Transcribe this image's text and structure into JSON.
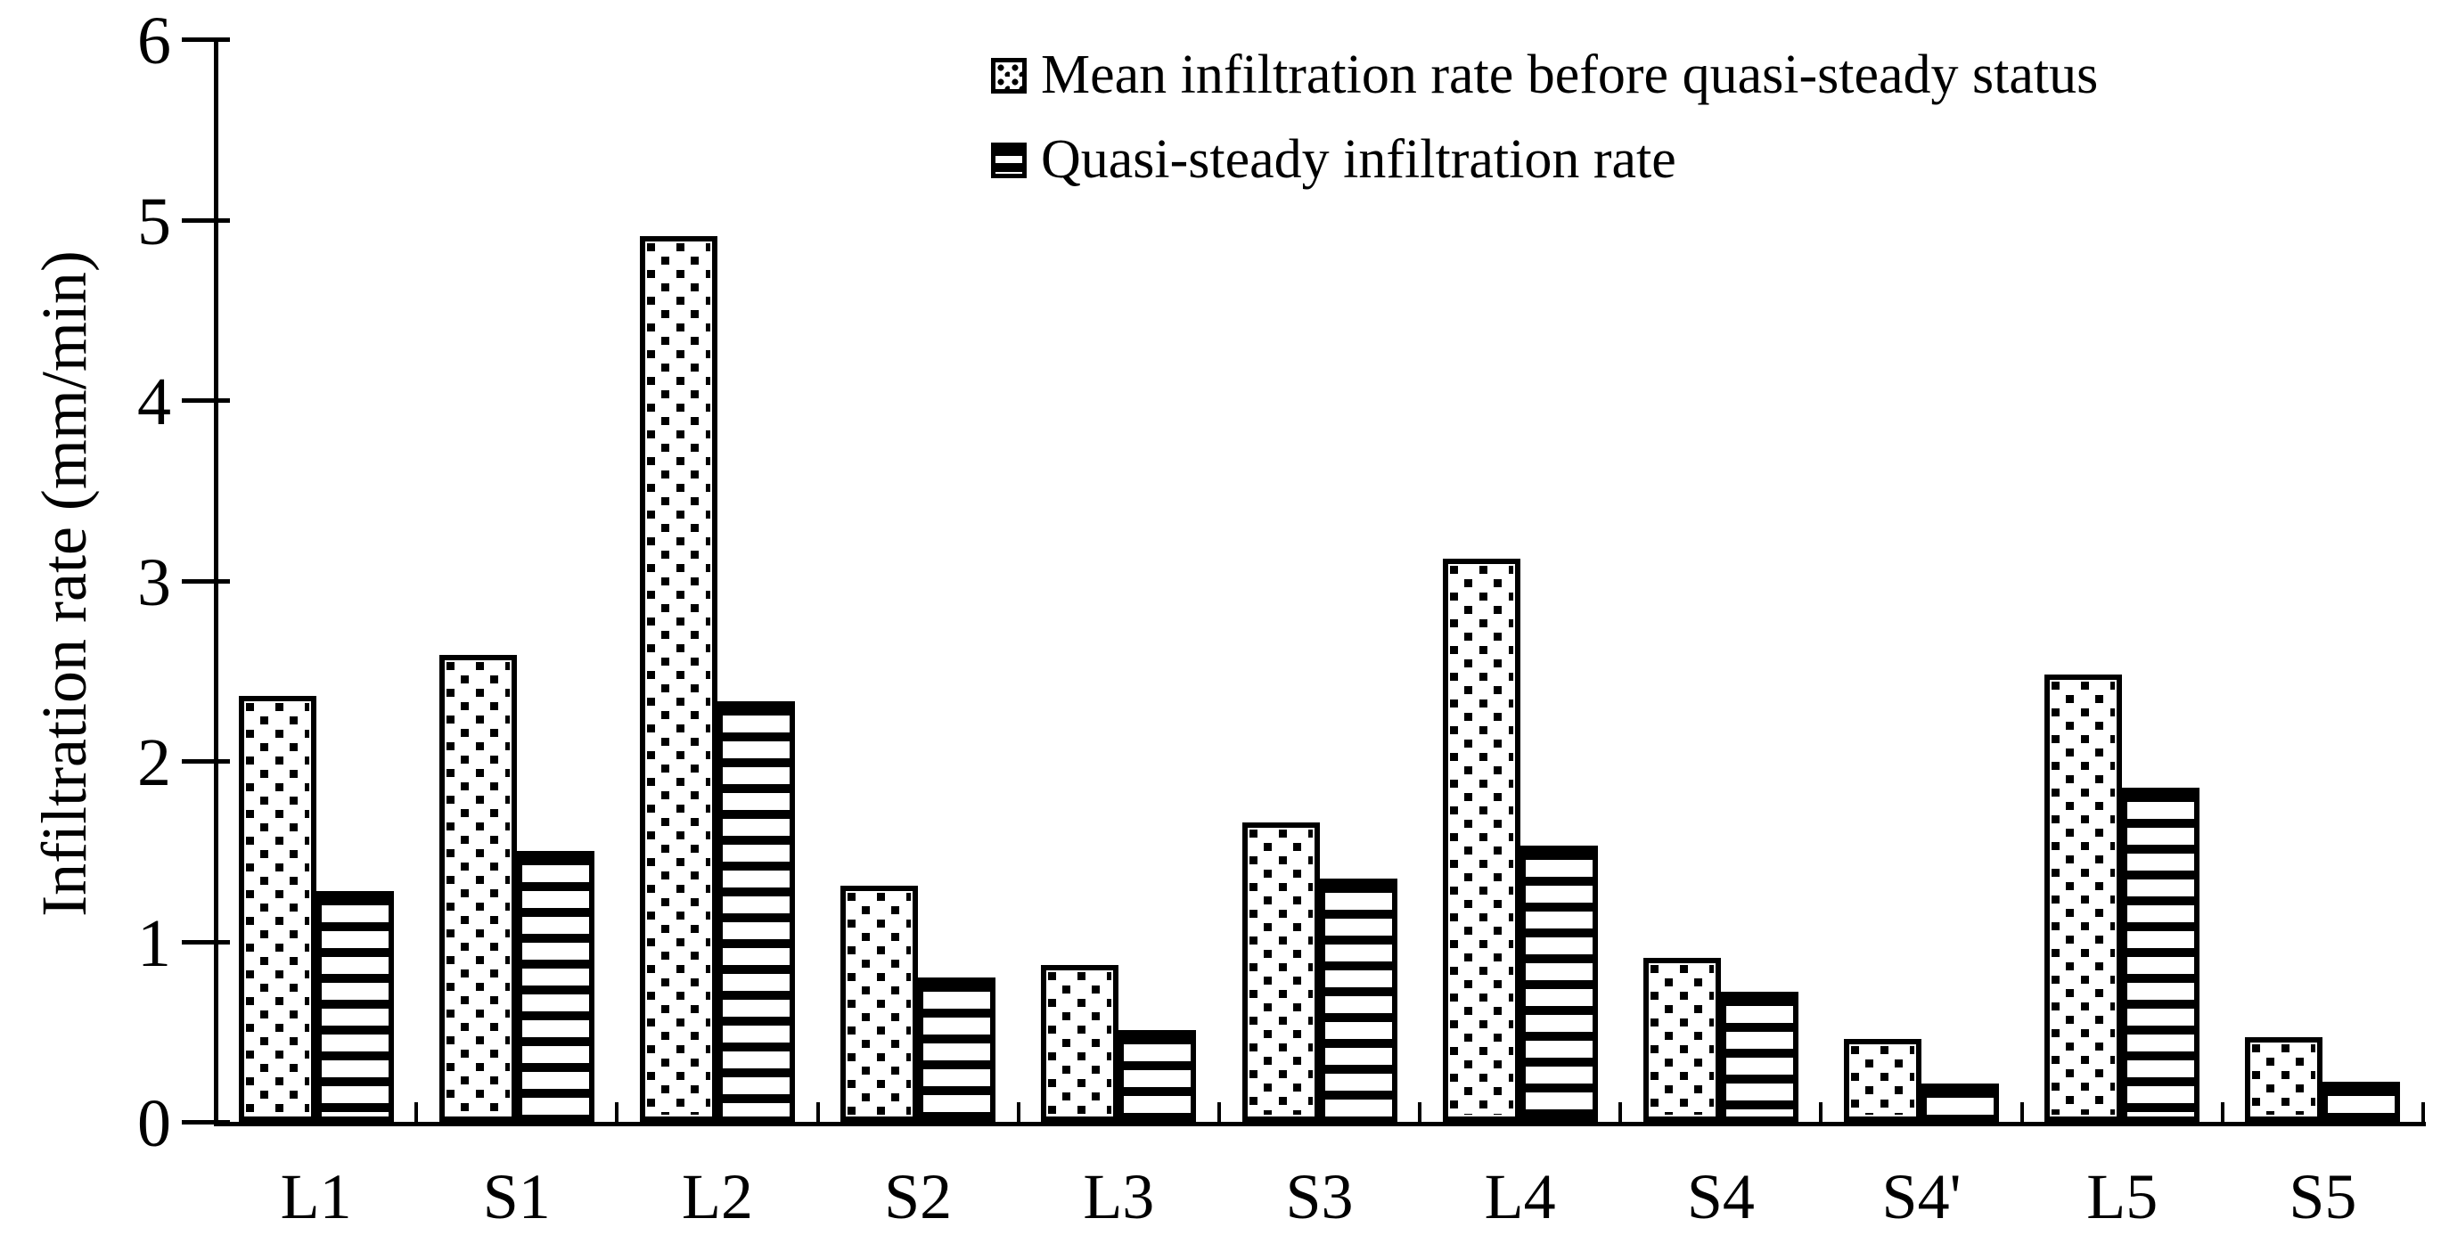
{
  "chart_data": {
    "type": "bar",
    "title": "",
    "ylabel": "Infiltration rate (mm/min)",
    "xlabel": "",
    "ylim": [
      0,
      6
    ],
    "yticks": [
      0,
      1,
      2,
      3,
      4,
      5,
      6
    ],
    "grid": false,
    "legend_position": "top-center",
    "colors": {
      "foreground": "#000000",
      "background": "#ffffff"
    },
    "categories": [
      "L1",
      "S1",
      "L2",
      "S2",
      "L3",
      "S3",
      "L4",
      "S4",
      "S4'",
      "L5",
      "S5"
    ],
    "series": [
      {
        "name": "Mean infiltration rate before quasi-steady status",
        "pattern": "dots",
        "values": [
          2.36,
          2.59,
          4.91,
          1.31,
          0.87,
          1.66,
          3.12,
          0.91,
          0.46,
          2.48,
          0.47
        ]
      },
      {
        "name": "Quasi-steady infiltration rate",
        "pattern": "horizontal-lines",
        "values": [
          1.28,
          1.5,
          2.33,
          0.8,
          0.51,
          1.35,
          1.53,
          0.72,
          0.21,
          1.85,
          0.22
        ]
      }
    ]
  }
}
